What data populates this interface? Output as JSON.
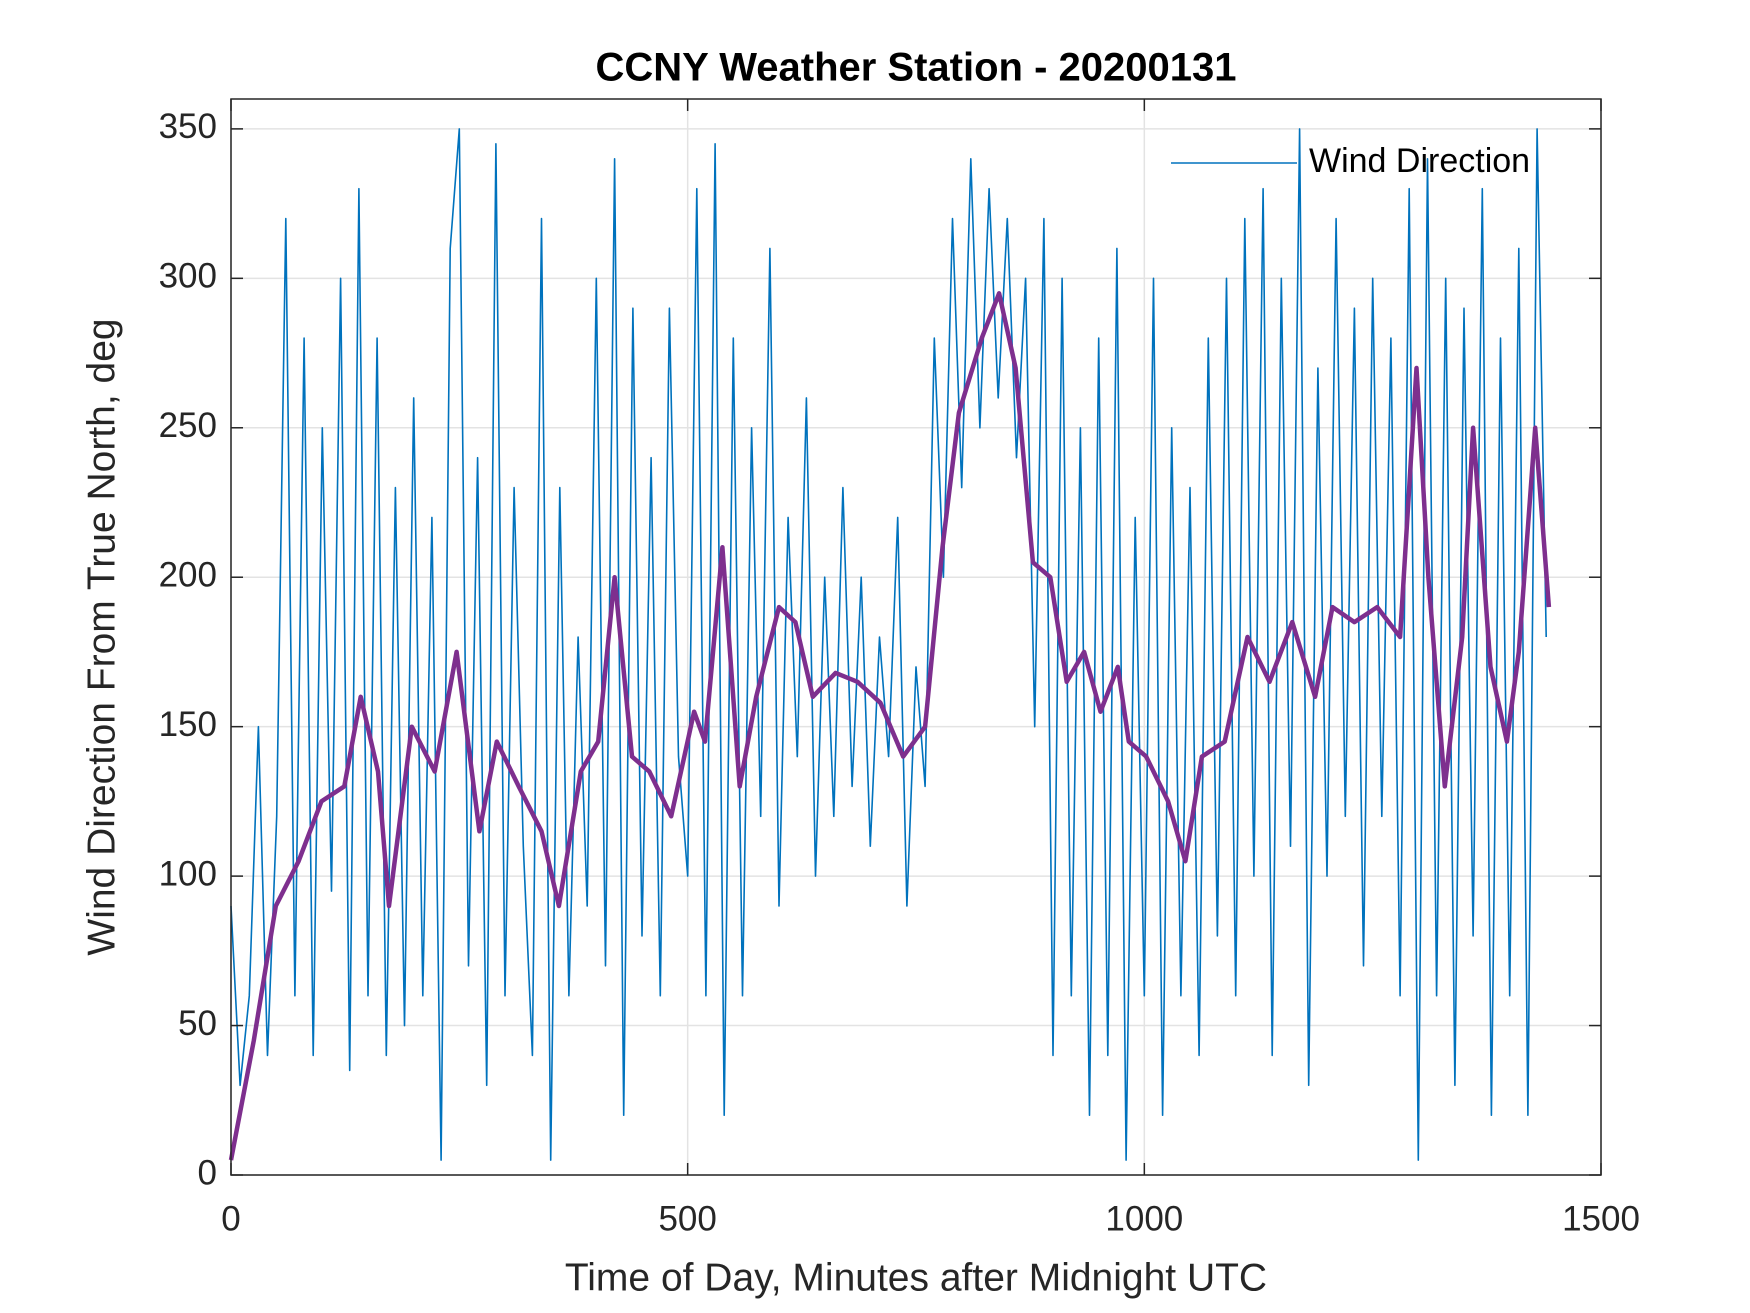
{
  "chart_data": {
    "type": "line",
    "title": "CCNY Weather Station - 20200131",
    "xlabel": "Time of Day, Minutes after Midnight UTC",
    "ylabel": "Wind Direction From True North, deg",
    "xlim": [
      0,
      1500
    ],
    "xticks": [
      0,
      500,
      1000,
      1500
    ],
    "ylim": [
      0,
      360
    ],
    "yticks": [
      0,
      50,
      100,
      150,
      200,
      250,
      300,
      350
    ],
    "grid": true,
    "legend": "northeast",
    "series": [
      {
        "name": "Wind Direction",
        "color": "#0072bd",
        "x": [
          0,
          10,
          20,
          30,
          40,
          50,
          60,
          70,
          80,
          90,
          100,
          110,
          120,
          130,
          140,
          150,
          160,
          170,
          180,
          190,
          200,
          210,
          220,
          230,
          240,
          250,
          260,
          270,
          280,
          290,
          300,
          310,
          320,
          330,
          340,
          350,
          360,
          370,
          380,
          390,
          400,
          410,
          420,
          430,
          440,
          450,
          460,
          470,
          480,
          490,
          500,
          510,
          520,
          530,
          540,
          550,
          560,
          570,
          580,
          590,
          600,
          610,
          620,
          630,
          640,
          650,
          660,
          670,
          680,
          690,
          700,
          710,
          720,
          730,
          740,
          750,
          760,
          770,
          780,
          790,
          800,
          810,
          820,
          830,
          840,
          850,
          860,
          870,
          880,
          890,
          900,
          910,
          920,
          930,
          940,
          950,
          960,
          970,
          980,
          990,
          1000,
          1010,
          1020,
          1030,
          1040,
          1050,
          1060,
          1070,
          1080,
          1090,
          1100,
          1110,
          1120,
          1130,
          1140,
          1150,
          1160,
          1170,
          1180,
          1190,
          1200,
          1210,
          1220,
          1230,
          1240,
          1250,
          1260,
          1270,
          1280,
          1290,
          1300,
          1310,
          1320,
          1330,
          1340,
          1350,
          1360,
          1370,
          1380,
          1390,
          1400,
          1410,
          1420,
          1430,
          1440
        ],
        "values": [
          90,
          30,
          60,
          150,
          40,
          120,
          320,
          60,
          280,
          40,
          250,
          95,
          300,
          35,
          330,
          60,
          280,
          40,
          230,
          50,
          260,
          60,
          220,
          5,
          310,
          350,
          70,
          240,
          30,
          345,
          60,
          230,
          110,
          40,
          320,
          5,
          230,
          60,
          180,
          90,
          300,
          70,
          340,
          20,
          290,
          80,
          240,
          60,
          290,
          140,
          100,
          330,
          60,
          345,
          20,
          280,
          60,
          250,
          120,
          310,
          90,
          220,
          140,
          260,
          100,
          200,
          120,
          230,
          130,
          200,
          110,
          180,
          140,
          220,
          90,
          170,
          130,
          280,
          200,
          320,
          230,
          340,
          250,
          330,
          260,
          320,
          240,
          300,
          150,
          320,
          40,
          300,
          60,
          250,
          20,
          280,
          40,
          310,
          5,
          220,
          60,
          300,
          20,
          250,
          60,
          230,
          40,
          280,
          80,
          300,
          60,
          320,
          100,
          330,
          40,
          300,
          110,
          350,
          30,
          270,
          100,
          320,
          120,
          290,
          70,
          300,
          120,
          280,
          60,
          330,
          5,
          340,
          60,
          300,
          30,
          290,
          80,
          330,
          20,
          280,
          60,
          310,
          20,
          350,
          180
        ]
      },
      {
        "color": "#7e2f8e",
        "x": [
          0,
          25,
          49,
          74,
          99,
          124,
          142,
          161,
          173,
          198,
          223,
          247,
          272,
          291,
          315,
          340,
          359,
          383,
          402,
          420,
          439,
          458,
          482,
          507,
          519,
          538,
          557,
          575,
          600,
          618,
          637,
          662,
          686,
          711,
          736,
          760,
          779,
          797,
          822,
          841,
          859,
          878,
          897,
          915,
          934,
          952,
          971,
          983,
          1002,
          1026,
          1045,
          1063,
          1088,
          1113,
          1137,
          1162,
          1187,
          1206,
          1230,
          1255,
          1280,
          1298,
          1311,
          1329,
          1348,
          1360,
          1379,
          1397,
          1410,
          1428,
          1443
        ],
        "values": [
          5,
          45,
          90,
          105,
          125,
          130,
          160,
          135,
          90,
          150,
          135,
          175,
          115,
          145,
          130,
          115,
          90,
          135,
          145,
          200,
          140,
          135,
          120,
          155,
          145,
          210,
          130,
          160,
          190,
          185,
          160,
          168,
          165,
          158,
          140,
          150,
          210,
          255,
          280,
          295,
          270,
          205,
          200,
          165,
          175,
          155,
          170,
          145,
          140,
          125,
          105,
          140,
          145,
          180,
          165,
          185,
          160,
          190,
          185,
          190,
          180,
          270,
          200,
          130,
          180,
          250,
          170,
          145,
          175,
          250,
          190
        ]
      }
    ]
  }
}
